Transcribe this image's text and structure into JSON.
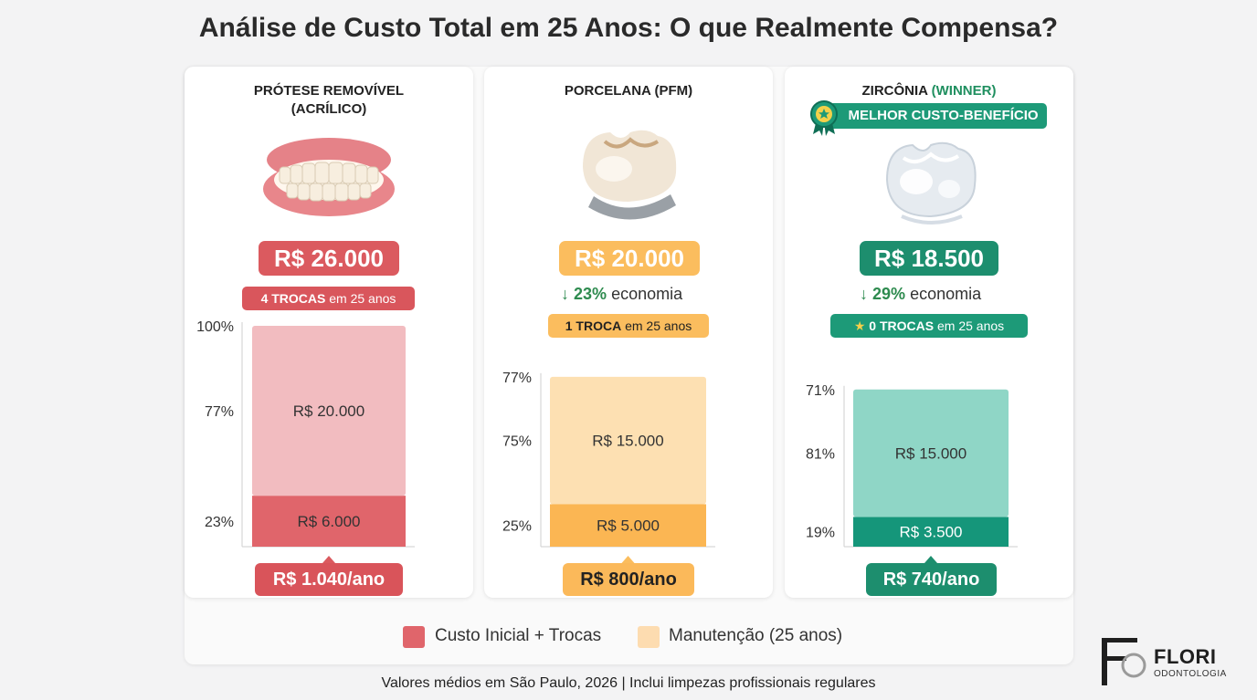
{
  "title": "Análise de Custo Total em 25 Anos: O que Realmente Compensa?",
  "cards": [
    {
      "title_line1": "PRÓTESE REMOVÍVEL",
      "title_line2": "(ACRÍLICO)",
      "price": "R$ 26.000",
      "trocas_bold": "4 TROCAS",
      "trocas_rest": " em 25 anos",
      "annual": "R$ 1.040/ano",
      "color": "#db5a5f"
    },
    {
      "title_line1": "PORCELANA (PFM)",
      "price": "R$ 20.000",
      "economy_value": "23%",
      "economy_text": "economia",
      "trocas_bold": "1 TROCA",
      "trocas_rest": " em 25 anos",
      "annual": "R$ 800/ano",
      "color": "#fbbd5e"
    },
    {
      "title_line1": "ZIRCÔNIA",
      "title_winner": "(WINNER)",
      "badge": "MELHOR CUSTO-BENEFÍCIO",
      "price": "R$ 18.500",
      "economy_value": "29%",
      "economy_text": "economia",
      "trocas_bold": "0 TROCAS",
      "trocas_rest": " em 25 anos",
      "annual": "R$ 740/ano",
      "color": "#1d8e6e"
    }
  ],
  "chart_data": [
    {
      "type": "bar",
      "stacked": true,
      "title": "PRÓTESE REMOVÍVEL (ACRÍLICO)",
      "bar_total_label": "100%",
      "segments": [
        {
          "name": "Custo Inicial + Trocas",
          "value": 6000,
          "value_label": "R$ 6.000",
          "pct_label": "23%",
          "color": "#e0656b"
        },
        {
          "name": "Manutenção (25 anos)",
          "value": 20000,
          "value_label": "R$ 20.000",
          "pct_label": "77%",
          "color": "#f2bcc0"
        }
      ]
    },
    {
      "type": "bar",
      "stacked": true,
      "title": "PORCELANA (PFM)",
      "bar_total_label": "77%",
      "segments": [
        {
          "name": "Custo Inicial + Trocas",
          "value": 5000,
          "value_label": "R$ 5.000",
          "pct_label": "25%",
          "color": "#fbb653"
        },
        {
          "name": "Manutenção (25 anos)",
          "value": 15000,
          "value_label": "R$ 15.000",
          "pct_label": "75%",
          "color": "#fde0b2"
        }
      ]
    },
    {
      "type": "bar",
      "stacked": true,
      "title": "ZIRCÔNIA (WINNER)",
      "bar_total_label": "71%",
      "segments": [
        {
          "name": "Custo Inicial + Trocas",
          "value": 3500,
          "value_label": "R$ 3.500",
          "pct_label": "19%",
          "color": "#15967a"
        },
        {
          "name": "Manutenção (25 anos)",
          "value": 15000,
          "value_label": "R$ 15.000",
          "pct_label": "81%",
          "color": "#8fd6c6"
        }
      ]
    }
  ],
  "legend": [
    {
      "label": "Custo Inicial + Trocas",
      "color": "#e0656b"
    },
    {
      "label": "Manutenção (25 anos)",
      "color": "#fddcb0"
    }
  ],
  "footer": "Valores médios em São Paulo, 2026 | Inclui limpezas profissionais regulares",
  "logo": {
    "name": "FLORI",
    "sub": "ODONTOLOGIA"
  }
}
